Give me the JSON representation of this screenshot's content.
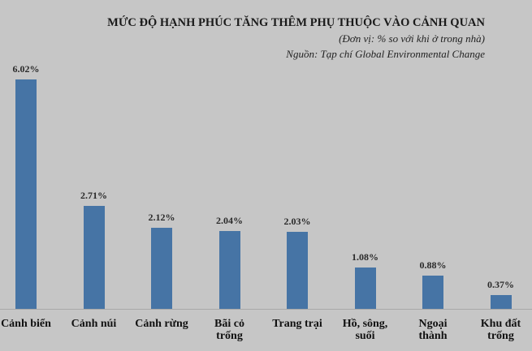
{
  "chart_data": {
    "type": "bar",
    "title": "MỨC ĐỘ HẠNH PHÚC TĂNG THÊM PHỤ THUỘC VÀO CẢNH QUAN",
    "subtitle": "(Đơn vị: % so với khi ở trong nhà)",
    "source": "Nguồn: Tạp chí Global Environmental Change",
    "categories": [
      "Cảnh biển",
      "Cảnh núi",
      "Cảnh rừng",
      "Bãi cỏ trống",
      "Trang trại",
      "Hồ, sông, suối",
      "Ngoại thành",
      "Khu đất trống"
    ],
    "category_lines": [
      [
        "Cảnh biển"
      ],
      [
        "Cảnh núi"
      ],
      [
        "Cảnh rừng"
      ],
      [
        "Bãi cỏ",
        "trống"
      ],
      [
        "Trang trại"
      ],
      [
        "Hồ, sông,",
        "suối"
      ],
      [
        "Ngoại",
        "thành"
      ],
      [
        "Khu đất",
        "trống"
      ]
    ],
    "values": [
      6.02,
      2.71,
      2.12,
      2.04,
      2.03,
      1.08,
      0.88,
      0.37
    ],
    "value_labels": [
      "6.02%",
      "2.71%",
      "2.12%",
      "2.04%",
      "2.03%",
      "1.08%",
      "0.88%",
      "0.37%"
    ],
    "xlabel": "",
    "ylabel": "",
    "grid": false,
    "legend": "none",
    "bar_color": "#4674a5"
  }
}
